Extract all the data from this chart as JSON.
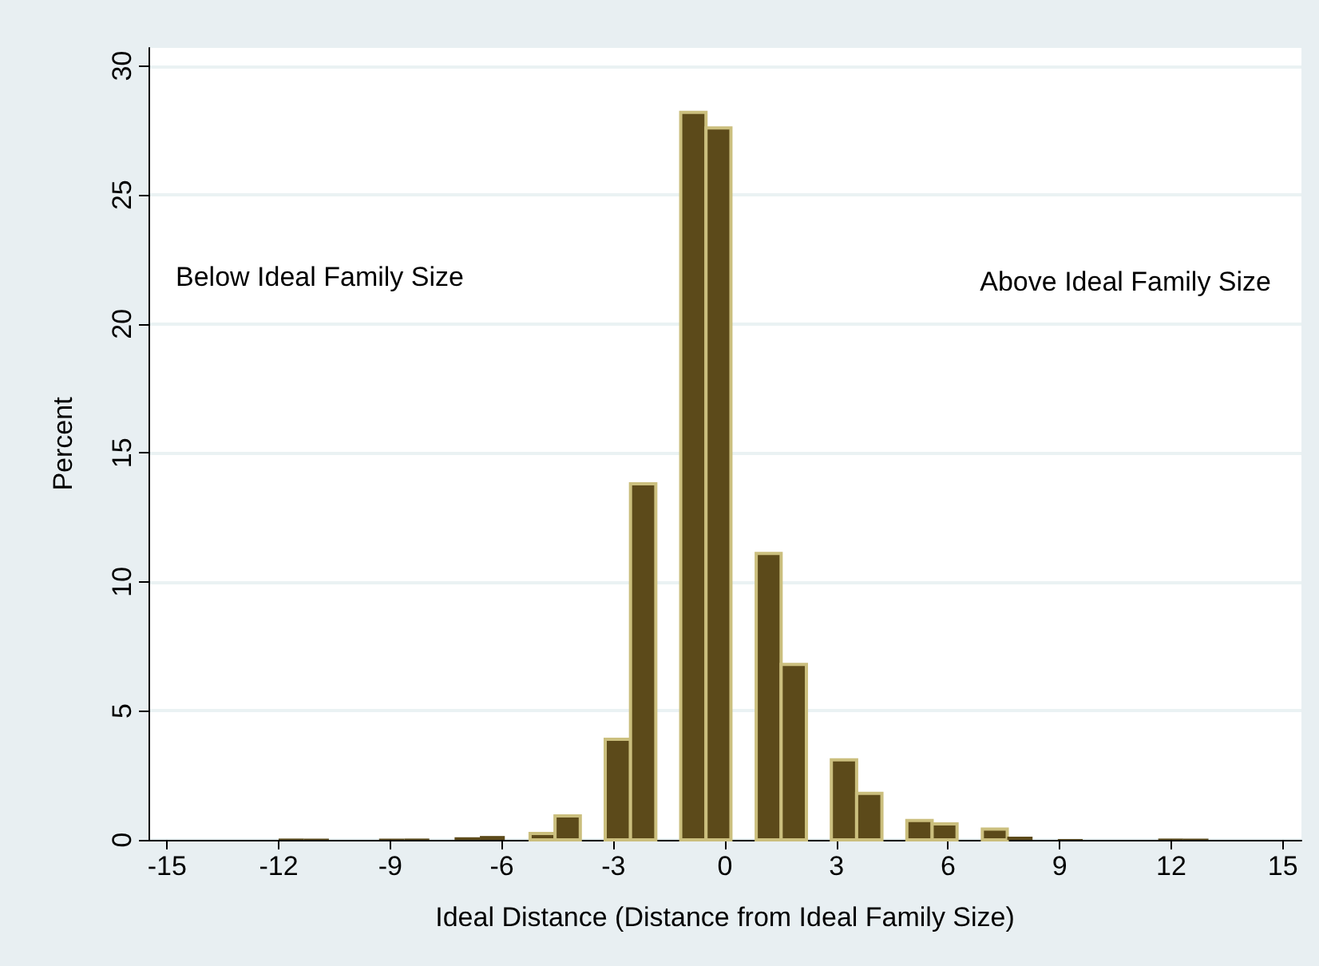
{
  "chart_data": {
    "type": "histogram",
    "bins": [
      -12,
      -11.32,
      -10.65,
      -9.97,
      -9.3,
      -8.62,
      -7.95,
      -7.27,
      -6.59,
      -5.92,
      -5.24,
      -4.57,
      -3.89,
      -3.22,
      -2.54,
      -1.86,
      -1.19,
      -0.51,
      0.16,
      0.84,
      1.51,
      2.19,
      2.86,
      3.54,
      4.22,
      4.89,
      5.57,
      6.24,
      6.92,
      7.59,
      8.27,
      8.95,
      9.62,
      10.3,
      10.97,
      11.65,
      12.32,
      13
    ],
    "values": [
      0.05,
      0.05,
      0,
      0,
      0.05,
      0.05,
      0,
      0.1,
      0.15,
      0,
      0.25,
      0.93,
      0,
      3.9,
      13.8,
      0,
      28.2,
      27.6,
      0,
      11.1,
      6.8,
      0,
      3.1,
      1.8,
      0,
      0.75,
      0.62,
      0,
      0.42,
      0.12,
      0,
      0.03,
      0,
      0,
      0,
      0.05,
      0.05
    ],
    "color": "#5c4a1a",
    "xlabel": "Ideal Distance (Distance from Ideal Family Size)",
    "ylabel": "Percent",
    "xlim": [
      -15.5,
      15.5
    ],
    "xticks": [
      -15,
      -12,
      -9,
      -6,
      -3,
      0,
      3,
      6,
      9,
      12,
      15
    ],
    "ylim": [
      0,
      30.7
    ],
    "yticks": [
      0,
      5,
      10,
      15,
      20,
      25,
      30
    ],
    "grid": "y",
    "annotations": [
      "Below Ideal Family Size",
      "Above Ideal Family Size"
    ]
  }
}
